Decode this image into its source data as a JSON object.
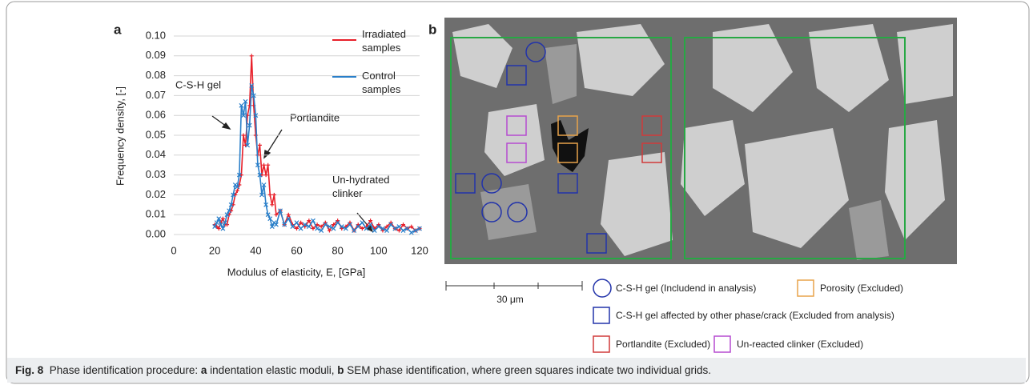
{
  "chart_data": {
    "type": "line",
    "panel_label": "a",
    "x": [
      20,
      21,
      22,
      23,
      24,
      25,
      26,
      27,
      28,
      29,
      30,
      31,
      32,
      33,
      34,
      35,
      36,
      37,
      38,
      39,
      40,
      41,
      42,
      43,
      44,
      45,
      46,
      47,
      48,
      49,
      50,
      52,
      54,
      56,
      58,
      60,
      62,
      64,
      66,
      68,
      70,
      72,
      74,
      76,
      78,
      80,
      82,
      84,
      86,
      88,
      90,
      92,
      94,
      96,
      98,
      100,
      102,
      104,
      106,
      108,
      110,
      112,
      114,
      116,
      118,
      120
    ],
    "series": [
      {
        "name": "Irradiated samples",
        "color": "#e8202a",
        "marker": "plus",
        "values": [
          0.005,
          0.004,
          0.003,
          0.006,
          0.008,
          0.005,
          0.005,
          0.01,
          0.012,
          0.015,
          0.02,
          0.022,
          0.025,
          0.03,
          0.05,
          0.045,
          0.06,
          0.065,
          0.09,
          0.065,
          0.05,
          0.04,
          0.045,
          0.03,
          0.035,
          0.03,
          0.035,
          0.02,
          0.015,
          0.02,
          0.01,
          0.012,
          0.005,
          0.01,
          0.005,
          0.003,
          0.006,
          0.004,
          0.007,
          0.003,
          0.005,
          0.004,
          0.006,
          0.002,
          0.005,
          0.007,
          0.003,
          0.004,
          0.006,
          0.002,
          0.005,
          0.003,
          0.004,
          0.007,
          0.003,
          0.005,
          0.002,
          0.004,
          0.006,
          0.003,
          0.002,
          0.005,
          0.003,
          0.004,
          0.002,
          0.003
        ]
      },
      {
        "name": "Control samples",
        "color": "#2a7fc9",
        "marker": "x",
        "values": [
          0.004,
          0.006,
          0.008,
          0.005,
          0.003,
          0.006,
          0.01,
          0.012,
          0.015,
          0.02,
          0.025,
          0.024,
          0.03,
          0.065,
          0.06,
          0.067,
          0.045,
          0.055,
          0.075,
          0.07,
          0.06,
          0.035,
          0.03,
          0.02,
          0.025,
          0.015,
          0.01,
          0.008,
          0.004,
          0.006,
          0.005,
          0.012,
          0.005,
          0.008,
          0.004,
          0.006,
          0.003,
          0.005,
          0.004,
          0.007,
          0.003,
          0.002,
          0.005,
          0.004,
          0.003,
          0.006,
          0.004,
          0.003,
          0.005,
          0.002,
          0.004,
          0.006,
          0.003,
          0.005,
          0.002,
          0.004,
          0.003,
          0.002,
          0.005,
          0.003,
          0.004,
          0.002,
          0.003,
          0.001,
          0.002,
          0.003
        ]
      }
    ],
    "xlim": [
      0,
      120
    ],
    "xticks": [
      0,
      20,
      40,
      60,
      80,
      100,
      120
    ],
    "ylim": [
      0,
      0.1
    ],
    "yticks": [
      {
        "value": 0,
        "label": "0.00"
      },
      {
        "value": 0.01,
        "label": "0.01"
      },
      {
        "value": 0.02,
        "label": "0.02"
      },
      {
        "value": 0.03,
        "label": "0.03"
      },
      {
        "value": 0.04,
        "label": "0.04"
      },
      {
        "value": 0.05,
        "label": "0.05"
      },
      {
        "value": 0.06,
        "label": "0.06"
      },
      {
        "value": 0.07,
        "label": "0.07"
      },
      {
        "value": 0.08,
        "label": "0.08"
      },
      {
        "value": 0.09,
        "label": "0.09"
      },
      {
        "value": 0.1,
        "label": "0.10"
      }
    ],
    "grid": true,
    "x_label": "Modulus of elasticity, E, [GPa]",
    "y_label": "Frequency density, [-]",
    "annotations": [
      "C-S-H gel",
      "Portlandite",
      "Un-hydrated clinker"
    ]
  },
  "panel_b": {
    "panel_label": "b",
    "scale_bar": "30 μm",
    "legend": [
      "C-S-H gel (Includend in analysis)",
      "Porosity (Excluded)",
      "C-S-H gel affected by other phase/crack (Excluded from analysis)",
      "Portlandite (Excluded)",
      "Un-reacted clinker (Excluded)"
    ]
  },
  "caption": {
    "label": "Fig. 8",
    "parts": [
      "Phase identification procedure: ",
      "a",
      " indentation elastic moduli, ",
      "b",
      " SEM phase identification, where green squares indicate two individual grids."
    ]
  }
}
